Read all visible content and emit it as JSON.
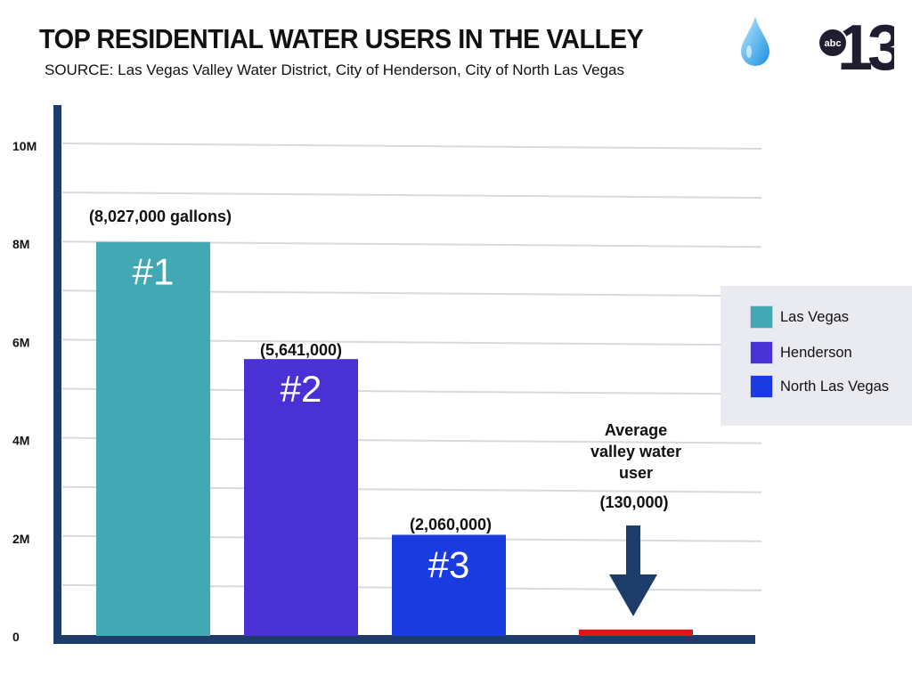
{
  "header": {
    "title": "TOP RESIDENTIAL WATER USERS IN THE VALLEY",
    "subtitle": "SOURCE: Las Vegas Valley Water District, City of Henderson, City of North Las Vegas",
    "drop_icon": "water-drop-icon",
    "logo_text": "abc 13"
  },
  "chart_data": {
    "type": "bar",
    "title": "TOP RESIDENTIAL WATER USERS IN THE VALLEY",
    "categories": [
      "#1",
      "#2",
      "#3",
      "Average valley water user"
    ],
    "values": [
      8027000,
      5641000,
      2060000,
      130000
    ],
    "data_labels": [
      "(8,027,000 gallons)",
      "(5,641,000)",
      "(2,060,000)",
      "(130,000)"
    ],
    "bar_labels": [
      "#1",
      "#2",
      "#3",
      ""
    ],
    "colors": [
      "#42a8b4",
      "#4a31d6",
      "#1a3be0",
      "#e0141d"
    ],
    "ylim": [
      0,
      10000000
    ],
    "yticks": [
      0,
      2000000,
      4000000,
      6000000,
      8000000,
      10000000
    ],
    "ytick_labels": [
      "0",
      "2M",
      "4M",
      "6M",
      "8M",
      "10M"
    ],
    "grid": true,
    "legend": {
      "position": "right",
      "entries": [
        {
          "label": "Las Vegas",
          "color": "#42a8b4"
        },
        {
          "label": "Henderson",
          "color": "#4a31d6"
        },
        {
          "label": "North Las Vegas",
          "color": "#1a3be0"
        }
      ]
    },
    "annotation": {
      "lines": [
        "Average",
        "valley water",
        "user"
      ],
      "arrow_color": "#1e3c6a"
    },
    "axis_color": "#1e3c6a"
  }
}
